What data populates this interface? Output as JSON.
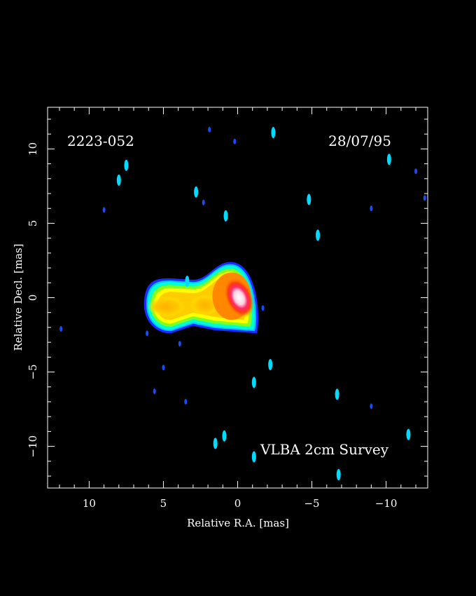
{
  "chart_data": {
    "type": "heatmap",
    "source_label": "2223-052",
    "date_label": "28/07/95",
    "survey_label": "VLBA 2cm Survey",
    "xlabel": "Relative R.A. [mas]",
    "ylabel": "Relative Decl. [mas]",
    "xlim": [
      12.8,
      -12.8
    ],
    "ylim": [
      -12.8,
      12.8
    ],
    "x_ticks": [
      10,
      5,
      0,
      -5,
      -10
    ],
    "y_ticks": [
      10,
      5,
      0,
      -5,
      -10
    ],
    "x_tick_labels": [
      "10",
      "5",
      "0",
      "−5",
      "−10"
    ],
    "y_tick_labels": [
      "10",
      "5",
      "0",
      "−5",
      "−10"
    ],
    "grid": false,
    "colormap": [
      "#000000",
      "#1a2cff",
      "#00a0ff",
      "#00ffff",
      "#00ff99",
      "#ccff00",
      "#ffff00",
      "#ffcc00",
      "#ff8800",
      "#ff3300",
      "#ff0066",
      "#ffffff"
    ],
    "core": {
      "x": -0.1,
      "y": 0.0,
      "peak": "white"
    },
    "emission_extent_x": [
      6.0,
      -1.0
    ],
    "emission_extent_y": [
      -2.1,
      2.1
    ],
    "noise_spots": [
      {
        "x": 7.5,
        "y": 8.9,
        "level": "cyan"
      },
      {
        "x": 8.0,
        "y": 7.9,
        "level": "cyan"
      },
      {
        "x": 9.0,
        "y": 5.9,
        "level": "blue"
      },
      {
        "x": 2.8,
        "y": 7.1,
        "level": "cyan"
      },
      {
        "x": 2.3,
        "y": 6.4,
        "level": "blue"
      },
      {
        "x": 0.8,
        "y": 5.5,
        "level": "cyan"
      },
      {
        "x": 0.2,
        "y": 10.5,
        "level": "blue"
      },
      {
        "x": -2.4,
        "y": 11.1,
        "level": "cyan"
      },
      {
        "x": -4.8,
        "y": 6.6,
        "level": "cyan"
      },
      {
        "x": -5.4,
        "y": 4.2,
        "level": "cyan"
      },
      {
        "x": -9.0,
        "y": 6.0,
        "level": "blue"
      },
      {
        "x": -10.2,
        "y": 9.3,
        "level": "cyan"
      },
      {
        "x": -12.6,
        "y": 6.7,
        "level": "blue"
      },
      {
        "x": -12.0,
        "y": 8.5,
        "level": "blue"
      },
      {
        "x": 3.4,
        "y": 1.1,
        "level": "cyan"
      },
      {
        "x": 3.9,
        "y": -3.1,
        "level": "blue"
      },
      {
        "x": 6.1,
        "y": -2.4,
        "level": "blue"
      },
      {
        "x": 5.0,
        "y": -4.7,
        "level": "blue"
      },
      {
        "x": 5.6,
        "y": -6.3,
        "level": "blue"
      },
      {
        "x": 3.5,
        "y": -7.0,
        "level": "blue"
      },
      {
        "x": -1.1,
        "y": -5.7,
        "level": "cyan"
      },
      {
        "x": -2.2,
        "y": -4.5,
        "level": "cyan"
      },
      {
        "x": -6.7,
        "y": -6.5,
        "level": "cyan"
      },
      {
        "x": -9.0,
        "y": -7.3,
        "level": "blue"
      },
      {
        "x": 1.5,
        "y": -9.8,
        "level": "cyan"
      },
      {
        "x": 0.9,
        "y": -9.3,
        "level": "cyan"
      },
      {
        "x": -1.1,
        "y": -10.7,
        "level": "cyan"
      },
      {
        "x": -6.8,
        "y": -11.9,
        "level": "cyan"
      },
      {
        "x": -11.5,
        "y": -9.2,
        "level": "cyan"
      },
      {
        "x": 11.9,
        "y": -2.1,
        "level": "blue"
      },
      {
        "x": 1.9,
        "y": 11.3,
        "level": "blue"
      },
      {
        "x": -1.7,
        "y": -0.7,
        "level": "blue"
      }
    ]
  }
}
